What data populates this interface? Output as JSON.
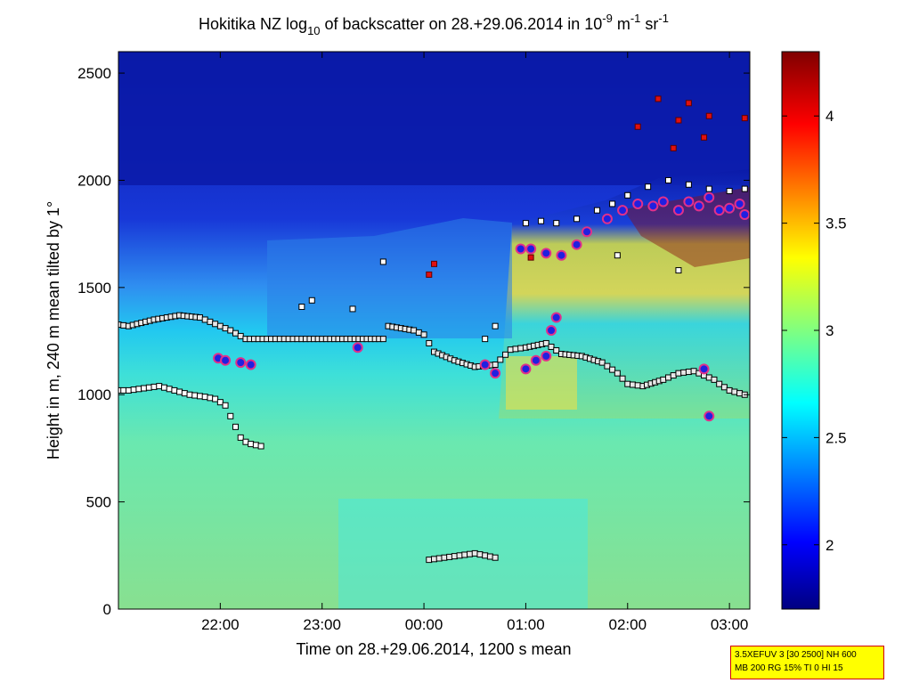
{
  "chart_data": {
    "type": "heatmap",
    "title": {
      "prefix": "Hokitika NZ log",
      "sub": "10",
      "middle": " of backscatter on 28.+29.06.2014 in 10",
      "exp1": "-9",
      "unit1": " m",
      "exp2": "-1",
      "unit2": " sr",
      "exp3": "-1"
    },
    "xlabel": "Time on 28.+29.06.2014, 1200 s mean",
    "ylabel": "Height in m, 240 m mean tilted by 1°",
    "xlim_hours": [
      21.0,
      27.2
    ],
    "ylim": [
      0,
      2600
    ],
    "xticks": [
      {
        "value": 22,
        "label": "22:00"
      },
      {
        "value": 23,
        "label": "23:00"
      },
      {
        "value": 24,
        "label": "00:00"
      },
      {
        "value": 25,
        "label": "01:00"
      },
      {
        "value": 26,
        "label": "02:00"
      },
      {
        "value": 27,
        "label": "03:00"
      }
    ],
    "yticks": [
      {
        "value": 0,
        "label": "0"
      },
      {
        "value": 500,
        "label": "500"
      },
      {
        "value": 1000,
        "label": "1000"
      },
      {
        "value": 1500,
        "label": "1500"
      },
      {
        "value": 2000,
        "label": "2000"
      },
      {
        "value": 2500,
        "label": "2500"
      }
    ],
    "colorbar": {
      "range": [
        1.7,
        4.3
      ],
      "ticks": [
        {
          "value": 2,
          "label": "2"
        },
        {
          "value": 2.5,
          "label": "2.5"
        },
        {
          "value": 3,
          "label": "3"
        },
        {
          "value": 3.5,
          "label": "3.5"
        },
        {
          "value": 4,
          "label": "4"
        }
      ]
    },
    "series": [
      {
        "name": "lower layer (black squares)",
        "points": [
          [
            20.95,
            1020
          ],
          [
            21.1,
            1020
          ],
          [
            21.25,
            1030
          ],
          [
            21.4,
            1040
          ],
          [
            21.55,
            1020
          ],
          [
            21.7,
            1000
          ],
          [
            21.85,
            990
          ],
          [
            21.95,
            980
          ],
          [
            22.05,
            950
          ],
          [
            22.1,
            900
          ],
          [
            22.15,
            850
          ],
          [
            22.2,
            800
          ],
          [
            22.25,
            780
          ],
          [
            22.3,
            770
          ],
          [
            22.4,
            760
          ]
        ]
      },
      {
        "name": "upper layer (black squares)",
        "points": [
          [
            20.95,
            1330
          ],
          [
            21.1,
            1320
          ],
          [
            21.35,
            1350
          ],
          [
            21.6,
            1370
          ],
          [
            21.8,
            1360
          ],
          [
            21.95,
            1330
          ],
          [
            22.1,
            1300
          ],
          [
            22.25,
            1260
          ],
          [
            22.5,
            1260
          ],
          [
            22.8,
            1260
          ],
          [
            23.0,
            1260
          ],
          [
            23.2,
            1260
          ],
          [
            23.4,
            1260
          ],
          [
            23.6,
            1260
          ],
          [
            23.65,
            1320
          ],
          [
            23.9,
            1300
          ],
          [
            24.0,
            1280
          ],
          [
            24.1,
            1200
          ],
          [
            24.3,
            1160
          ],
          [
            24.5,
            1130
          ],
          [
            24.7,
            1140
          ],
          [
            24.85,
            1210
          ],
          [
            25.0,
            1220
          ],
          [
            25.2,
            1240
          ],
          [
            25.35,
            1190
          ],
          [
            25.55,
            1180
          ],
          [
            25.75,
            1150
          ],
          [
            25.9,
            1100
          ],
          [
            26.0,
            1050
          ],
          [
            26.15,
            1040
          ],
          [
            26.35,
            1070
          ],
          [
            26.5,
            1100
          ],
          [
            26.65,
            1110
          ],
          [
            26.75,
            1090
          ],
          [
            26.85,
            1070
          ],
          [
            26.9,
            1050
          ],
          [
            27.0,
            1020
          ],
          [
            27.15,
            1000
          ]
        ]
      },
      {
        "name": "near-ground layer (black squares)",
        "points": [
          [
            24.05,
            230
          ],
          [
            24.2,
            240
          ],
          [
            24.35,
            250
          ],
          [
            24.5,
            260
          ],
          [
            24.6,
            250
          ],
          [
            24.7,
            240
          ]
        ]
      },
      {
        "name": "cloud base (blue dots)",
        "points": [
          [
            21.98,
            1170
          ],
          [
            22.05,
            1160
          ],
          [
            22.2,
            1150
          ],
          [
            22.3,
            1140
          ],
          [
            23.35,
            1220
          ],
          [
            24.6,
            1140
          ],
          [
            24.7,
            1100
          ],
          [
            25.0,
            1120
          ],
          [
            25.1,
            1160
          ],
          [
            25.2,
            1180
          ],
          [
            25.25,
            1300
          ],
          [
            25.3,
            1360
          ],
          [
            24.95,
            1680
          ],
          [
            25.05,
            1680
          ],
          [
            25.2,
            1660
          ],
          [
            25.35,
            1650
          ],
          [
            25.5,
            1700
          ],
          [
            25.6,
            1760
          ],
          [
            25.8,
            1820
          ],
          [
            25.95,
            1860
          ],
          [
            26.1,
            1890
          ],
          [
            26.25,
            1880
          ],
          [
            26.35,
            1900
          ],
          [
            26.5,
            1860
          ],
          [
            26.6,
            1900
          ],
          [
            26.7,
            1880
          ],
          [
            26.8,
            1920
          ],
          [
            26.9,
            1860
          ],
          [
            27.0,
            1870
          ],
          [
            27.1,
            1890
          ],
          [
            27.15,
            1840
          ],
          [
            26.75,
            1120
          ],
          [
            26.8,
            900
          ]
        ]
      },
      {
        "name": "cloud top (white squares)",
        "points": [
          [
            25.0,
            1800
          ],
          [
            25.15,
            1810
          ],
          [
            25.3,
            1800
          ],
          [
            25.5,
            1820
          ],
          [
            25.7,
            1860
          ],
          [
            25.85,
            1890
          ],
          [
            26.0,
            1930
          ],
          [
            26.2,
            1970
          ],
          [
            26.4,
            2000
          ],
          [
            26.6,
            1980
          ],
          [
            26.8,
            1960
          ],
          [
            27.0,
            1950
          ],
          [
            27.15,
            1960
          ],
          [
            22.8,
            1410
          ],
          [
            22.9,
            1440
          ],
          [
            23.3,
            1400
          ],
          [
            23.6,
            1620
          ],
          [
            24.7,
            1320
          ],
          [
            24.6,
            1260
          ],
          [
            25.9,
            1650
          ],
          [
            26.5,
            1580
          ]
        ]
      },
      {
        "name": "high returns (red squares)",
        "points": [
          [
            24.05,
            1560
          ],
          [
            24.1,
            1610
          ],
          [
            25.05,
            1640
          ],
          [
            26.1,
            2250
          ],
          [
            26.3,
            2380
          ],
          [
            26.5,
            2280
          ],
          [
            26.6,
            2360
          ],
          [
            26.8,
            2300
          ],
          [
            27.15,
            2290
          ],
          [
            26.45,
            2150
          ],
          [
            26.75,
            2200
          ]
        ]
      }
    ]
  },
  "info_box": {
    "line1": "3.5XEFUV 3 [30 2500] NH 600",
    "line2": "MB 200 RG 15% TI 0 HI 15"
  }
}
